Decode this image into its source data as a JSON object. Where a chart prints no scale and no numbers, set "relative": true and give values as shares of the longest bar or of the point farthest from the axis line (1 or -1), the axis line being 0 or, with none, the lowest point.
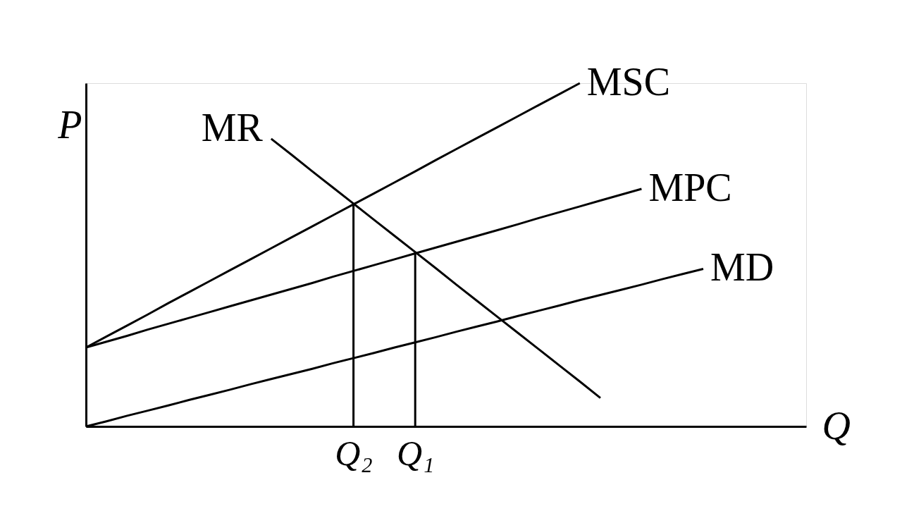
{
  "chart_data": {
    "type": "line",
    "relative": true,
    "xlabel": "Q",
    "ylabel": "P",
    "legend": false,
    "line_style": "solid",
    "categories": [
      null,
      null,
      null,
      null,
      null,
      null,
      null,
      null,
      null,
      null,
      null,
      null,
      null,
      "Q₂",
      null,
      null,
      "Q₁",
      null,
      null,
      null,
      null,
      null,
      null,
      null,
      null,
      null,
      null,
      null,
      null,
      null,
      null,
      null,
      null,
      null,
      null,
      null
    ],
    "series": [
      {
        "name": "MSC",
        "color": "#000000",
        "values": [
          0.23,
          0.262,
          0.294,
          0.326,
          0.359,
          0.391,
          0.423,
          0.455,
          0.487,
          0.519,
          0.551,
          0.583,
          0.615,
          0.647,
          0.679,
          0.711,
          0.743,
          0.776,
          0.808,
          0.84,
          0.872,
          0.904,
          0.936,
          0.968,
          1,
          null,
          null,
          null,
          null,
          null,
          null,
          null,
          null,
          null,
          null,
          null
        ]
      },
      {
        "name": "MPC",
        "color": "#000000",
        "values": [
          0.23,
          0.247,
          0.264,
          0.282,
          0.299,
          0.316,
          0.333,
          0.35,
          0.367,
          0.384,
          0.401,
          0.418,
          0.436,
          0.453,
          0.47,
          0.487,
          0.504,
          0.521,
          0.538,
          0.555,
          0.572,
          0.589,
          0.607,
          0.624,
          0.641,
          0.658,
          0.675,
          0.692,
          null,
          null,
          null,
          null,
          null,
          null,
          null,
          null
        ]
      },
      {
        "name": "MD",
        "color": "#000000",
        "values": [
          0,
          0.015,
          0.031,
          0.046,
          0.061,
          0.077,
          0.092,
          0.107,
          0.123,
          0.138,
          0.153,
          0.168,
          0.184,
          0.199,
          0.214,
          0.23,
          0.245,
          0.26,
          0.276,
          0.291,
          0.306,
          0.322,
          0.337,
          0.352,
          0.368,
          0.383,
          0.398,
          0.413,
          0.429,
          0.444,
          0.459,
          null,
          null,
          null,
          null,
          null
        ]
      },
      {
        "name": "MR",
        "color": "#000000",
        "values": [
          null,
          null,
          null,
          null,
          null,
          null,
          null,
          null,
          null,
          0.838,
          0.791,
          0.743,
          0.696,
          0.649,
          0.602,
          0.555,
          0.508,
          0.461,
          0.413,
          0.366,
          0.319,
          0.272,
          0.225,
          0.178,
          0.131,
          0.083,
          null,
          null,
          null,
          null,
          null,
          null,
          null,
          null,
          null,
          null
        ]
      },
      {
        "type": "bar",
        "color": "#000000",
        "values": [
          null,
          null,
          null,
          null,
          null,
          null,
          null,
          null,
          null,
          null,
          null,
          null,
          null,
          0.648,
          null,
          null,
          0.506,
          null,
          null,
          null,
          null,
          null,
          null,
          null,
          null,
          null,
          null,
          null,
          null,
          null,
          null,
          null,
          null,
          null,
          null,
          null
        ]
      }
    ]
  }
}
